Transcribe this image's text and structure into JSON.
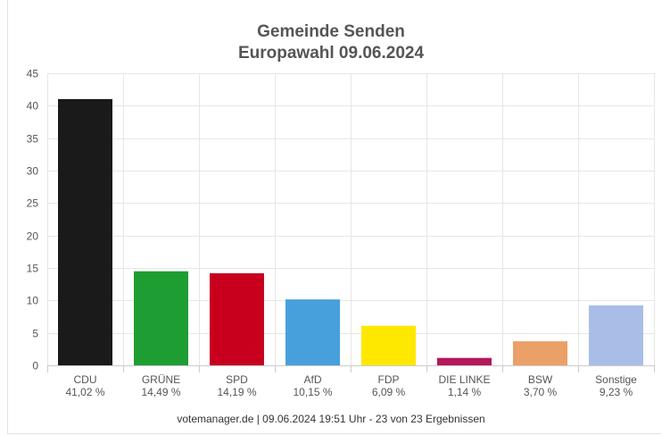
{
  "chart_data": {
    "type": "bar",
    "title": "Gemeinde Senden",
    "subtitle": "Europawahl 09.06.2024",
    "categories": [
      "CDU",
      "GRÜNE",
      "SPD",
      "AfD",
      "FDP",
      "DIE LINKE",
      "BSW",
      "Sonstige"
    ],
    "value_labels": [
      "41,02 %",
      "14,49 %",
      "14,19 %",
      "10,15 %",
      "6,09 %",
      "1,14 %",
      "3,70 %",
      "9,23 %"
    ],
    "values": [
      41.02,
      14.49,
      14.19,
      10.15,
      6.09,
      1.14,
      3.7,
      9.23
    ],
    "colors": [
      "#1a1a1a",
      "#1e9e32",
      "#c8001e",
      "#47a0dc",
      "#ffe800",
      "#b4185a",
      "#eba068",
      "#a8bee6"
    ],
    "ylim": [
      0,
      45
    ],
    "yticks": [
      0,
      5,
      10,
      15,
      20,
      25,
      30,
      35,
      40,
      45
    ],
    "grid": true,
    "legend": "none"
  },
  "footer": "votemanager.de | 09.06.2024 19:51 Uhr - 23 von 23 Ergebnissen"
}
